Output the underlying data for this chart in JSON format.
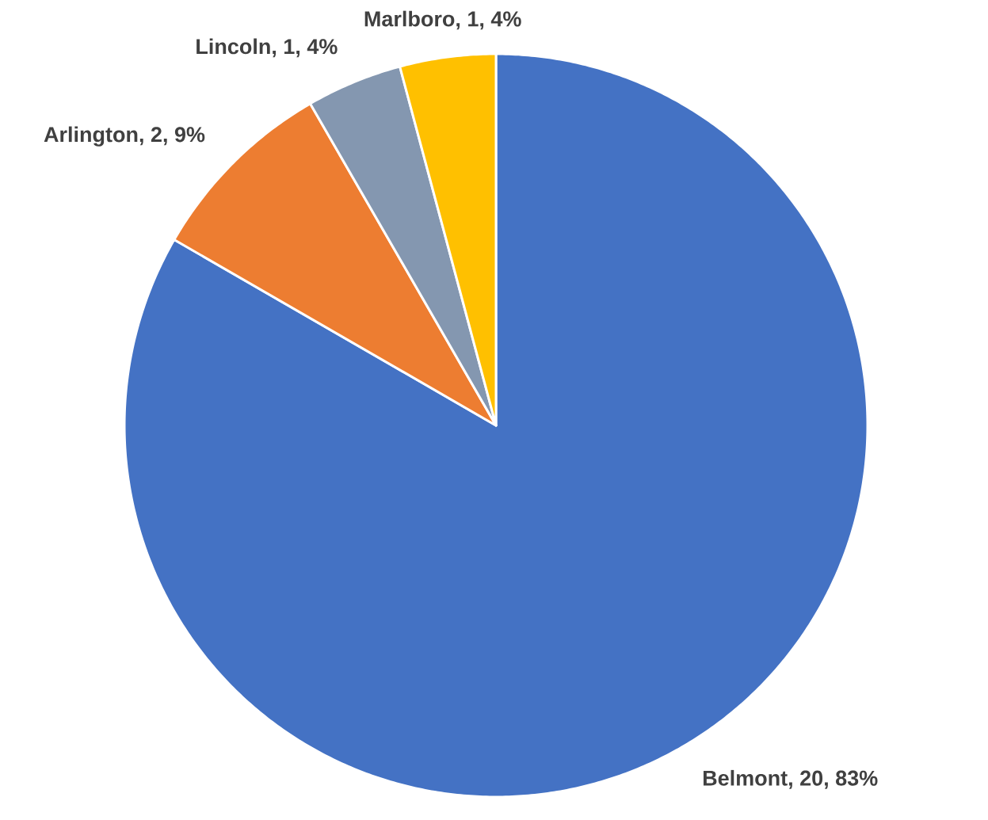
{
  "chart_data": {
    "type": "pie",
    "categories": [
      "Belmont",
      "Arlington",
      "Lincoln",
      "Marlboro"
    ],
    "values": [
      20,
      2,
      1,
      1
    ],
    "value_labels": [
      ", 20, 83%",
      ", 2, 9%",
      ", 1, 4%",
      ", 1, 4%"
    ],
    "colors": [
      "#4472c4",
      "#ed7d31",
      "#8497b0",
      "#ffc000"
    ]
  }
}
